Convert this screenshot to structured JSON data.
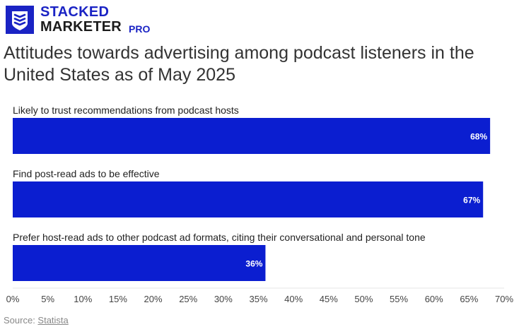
{
  "brand": {
    "line1": "STACKED",
    "line2": "MARKETER",
    "suffix": "PRO",
    "color": "#1a23c4"
  },
  "chart_data": {
    "type": "bar",
    "orientation": "horizontal",
    "title": "Attitudes towards advertising among podcast listeners in the United States as of May 2025",
    "categories": [
      "Likely to trust recommendations from podcast hosts",
      "Find post-read ads to be effective",
      "Prefer host-read ads to other podcast ad formats, citing their conversational and personal tone"
    ],
    "values": [
      68,
      67,
      36
    ],
    "value_labels": [
      "68%",
      "67%",
      "36%"
    ],
    "xlim": [
      0,
      70
    ],
    "xticks": [
      "0%",
      "5%",
      "10%",
      "15%",
      "20%",
      "25%",
      "30%",
      "35%",
      "40%",
      "45%",
      "50%",
      "55%",
      "60%",
      "65%",
      "70%"
    ],
    "bar_color": "#0b1ed0",
    "grid": false
  },
  "source": {
    "prefix": "Source: ",
    "link": "Statista"
  }
}
